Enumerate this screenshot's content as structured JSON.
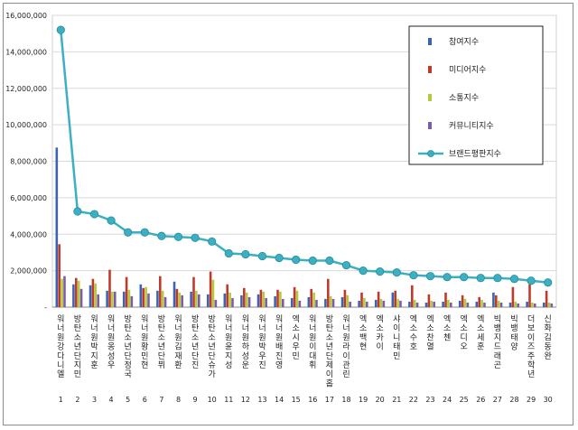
{
  "chart_data": {
    "type": "bar",
    "title": "",
    "xlabel": "",
    "ylabel": "",
    "ylim": [
      0,
      16000000
    ],
    "yticks": [
      "-",
      "2,000,000",
      "4,000,000",
      "6,000,000",
      "8,000,000",
      "10,000,000",
      "12,000,000",
      "14,000,000",
      "16,000,000"
    ],
    "grid": true,
    "legend_position": "top-right",
    "categories": [
      "워너원강다니엘",
      "방탄소년단지민",
      "워너원박지훈",
      "워너원옹성우",
      "방탄소년단정국",
      "워너원황민현",
      "방탄소년단뷔",
      "워너원김재환",
      "방탄소년단진",
      "방탄소년단슈가",
      "워너원윤지성",
      "워너원하성운",
      "워너원박우진",
      "워너원배진영",
      "엑소시우민",
      "워너원이대휘",
      "방탄소년단제이홉",
      "워너원라이관린",
      "엑소백현",
      "엑소카이",
      "샤이니태민",
      "엑소수호",
      "엑소찬열",
      "엑소첸",
      "엑소디오",
      "엑소세훈",
      "빅뱅지드래곤",
      "빅뱅태양",
      "더보이즈주학년",
      "신화김동완"
    ],
    "indices": [
      "1",
      "2",
      "3",
      "4",
      "5",
      "6",
      "7",
      "8",
      "9",
      "10",
      "11",
      "12",
      "13",
      "14",
      "15",
      "16",
      "17",
      "18",
      "19",
      "20",
      "21",
      "22",
      "23",
      "24",
      "25",
      "26",
      "27",
      "28",
      "29",
      "30"
    ],
    "series": [
      {
        "name": "참여지수",
        "color": "#3a64b4",
        "values": [
          8750000,
          1250000,
          1200000,
          900000,
          850000,
          1250000,
          900000,
          1400000,
          850000,
          700000,
          750000,
          650000,
          700000,
          600000,
          500000,
          550000,
          450000,
          550000,
          350000,
          400000,
          800000,
          300000,
          250000,
          300000,
          350000,
          300000,
          800000,
          250000,
          300000,
          250000
        ]
      },
      {
        "name": "미디어지수",
        "color": "#c0392b",
        "values": [
          3450000,
          1600000,
          1550000,
          2050000,
          1650000,
          1050000,
          1700000,
          1000000,
          1650000,
          1950000,
          1250000,
          1050000,
          950000,
          950000,
          1100000,
          1000000,
          1550000,
          950000,
          800000,
          850000,
          900000,
          1200000,
          700000,
          800000,
          650000,
          550000,
          650000,
          1100000,
          1250000,
          900000
        ]
      },
      {
        "name": "소통지수",
        "color": "#b5c93a",
        "values": [
          1550000,
          1450000,
          1300000,
          850000,
          950000,
          1100000,
          900000,
          800000,
          900000,
          1500000,
          800000,
          800000,
          850000,
          850000,
          900000,
          800000,
          600000,
          650000,
          500000,
          450000,
          450000,
          400000,
          350000,
          400000,
          450000,
          400000,
          350000,
          300000,
          250000,
          250000
        ]
      },
      {
        "name": "커뮤니티지수",
        "color": "#7b5ca8",
        "values": [
          1700000,
          1000000,
          700000,
          850000,
          600000,
          750000,
          550000,
          650000,
          700000,
          400000,
          500000,
          550000,
          500000,
          450000,
          350000,
          400000,
          450000,
          300000,
          300000,
          350000,
          350000,
          250000,
          300000,
          250000,
          250000,
          250000,
          250000,
          200000,
          200000,
          200000
        ]
      },
      {
        "name": "브랜드평판지수",
        "color": "#3ab0c2",
        "type": "line",
        "values": [
          15200000,
          5250000,
          5100000,
          4750000,
          4100000,
          4100000,
          3900000,
          3850000,
          3800000,
          3600000,
          2950000,
          2900000,
          2800000,
          2700000,
          2600000,
          2550000,
          2550000,
          2300000,
          2000000,
          1950000,
          1900000,
          1750000,
          1700000,
          1650000,
          1650000,
          1600000,
          1600000,
          1550000,
          1450000,
          1350000
        ]
      }
    ]
  }
}
